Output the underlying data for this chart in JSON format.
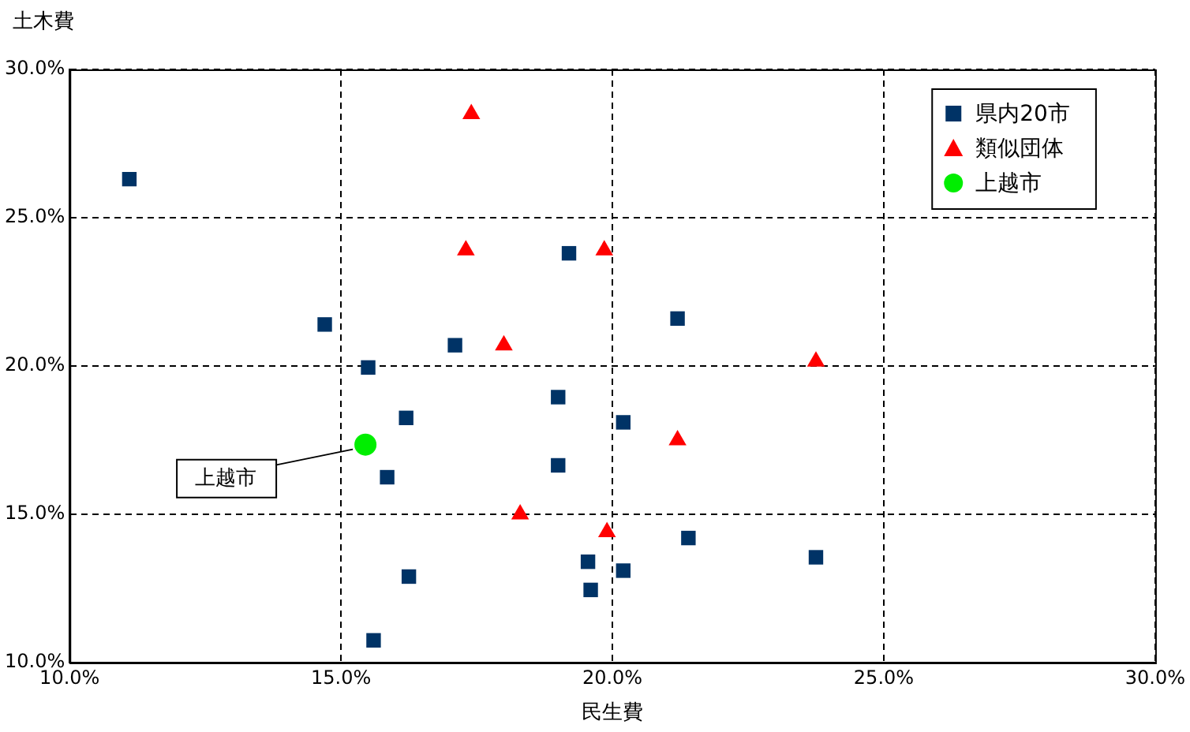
{
  "chart_data": {
    "type": "scatter",
    "xlabel": "民生費",
    "ylabel": "土木費",
    "xlim": [
      10,
      30
    ],
    "ylim": [
      10,
      30
    ],
    "xticks": [
      {
        "value": 10,
        "label": "10.0%"
      },
      {
        "value": 15,
        "label": "15.0%"
      },
      {
        "value": 20,
        "label": "20.0%"
      },
      {
        "value": 25,
        "label": "25.0%"
      },
      {
        "value": 30,
        "label": "30.0%"
      }
    ],
    "yticks": [
      {
        "value": 10,
        "label": "10.0%"
      },
      {
        "value": 15,
        "label": "15.0%"
      },
      {
        "value": 20,
        "label": "20.0%"
      },
      {
        "value": 25,
        "label": "25.0%"
      },
      {
        "value": 30,
        "label": "30.0%"
      }
    ],
    "grid": true,
    "legend": "top right",
    "series": [
      {
        "name": "県内20市",
        "color": "#003366",
        "marker": "square",
        "x": [
          11.1,
          14.7,
          15.5,
          16.2,
          15.85,
          16.25,
          15.6,
          17.1,
          19.2,
          19.0,
          19.0,
          20.2,
          21.2,
          19.55,
          19.6,
          20.2,
          21.4,
          23.75
        ],
        "values": [
          26.3,
          21.4,
          19.95,
          18.25,
          16.25,
          12.9,
          10.75,
          20.7,
          23.8,
          18.95,
          16.65,
          18.1,
          21.6,
          13.4,
          12.45,
          13.1,
          14.2,
          13.55
        ]
      },
      {
        "name": "類似団体",
        "color": "#ff0000",
        "marker": "triangle",
        "x": [
          17.4,
          17.3,
          19.85,
          18.0,
          23.75,
          21.2,
          18.3,
          19.9
        ],
        "values": [
          28.5,
          23.9,
          23.9,
          20.7,
          20.15,
          17.5,
          15.0,
          14.4
        ]
      },
      {
        "name": "上越市",
        "color": "#00ee00",
        "marker": "circle",
        "x": [
          15.45
        ],
        "values": [
          17.35
        ]
      }
    ],
    "annotations": [
      {
        "text": "上越市",
        "x": 15.45,
        "y": 17.35
      }
    ]
  }
}
